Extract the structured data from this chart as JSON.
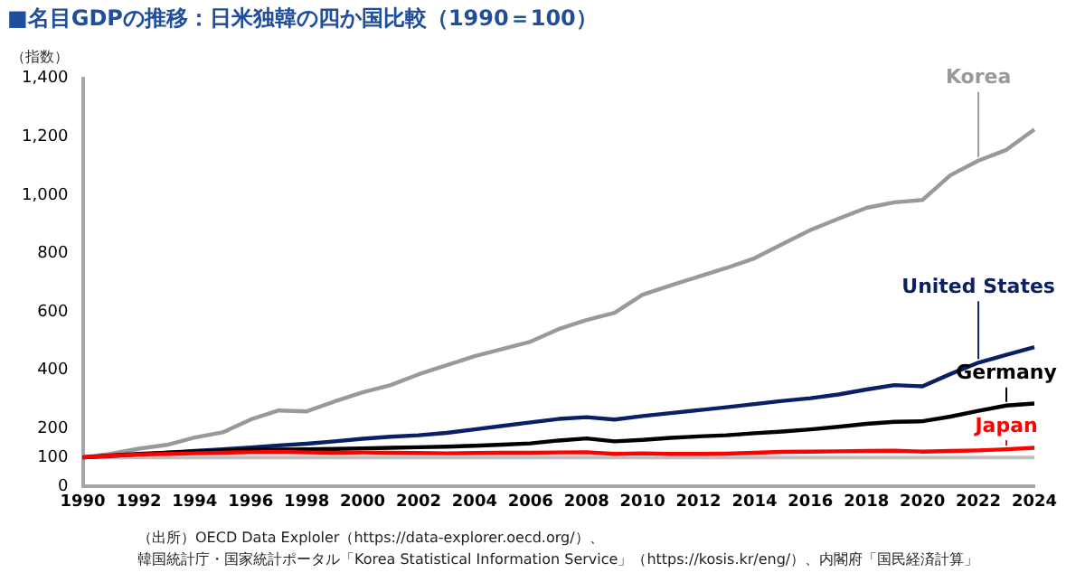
{
  "chart_data": {
    "type": "line",
    "title": "■名目GDPの推移：日米独韓の四か国比較（1990＝100）",
    "ylabel": "（指数）",
    "categories": [
      "1990",
      null,
      "1992",
      null,
      "1994",
      null,
      "1996",
      null,
      "1998",
      null,
      "2000",
      null,
      "2002",
      null,
      "2004",
      null,
      "2006",
      null,
      "2008",
      null,
      "2010",
      null,
      "2012",
      null,
      "2014",
      null,
      "2016",
      null,
      "2018",
      null,
      "2020",
      null,
      "2022",
      null,
      "2024"
    ],
    "series": [
      {
        "name": "Korea",
        "color": "#999999",
        "values": [
          100,
          112,
          130,
          143,
          168,
          186,
          230,
          261,
          258,
          292,
          323,
          348,
          385,
          416,
          447,
          472,
          497,
          540,
          571,
          596,
          658,
          690,
          720,
          750,
          783,
          832,
          880,
          919,
          956,
          975,
          983,
          1068,
          1118,
          1155,
          1225
        ]
      },
      {
        "name": "United States",
        "color": "#0b1f65",
        "values": [
          100,
          105,
          110,
          116,
          122,
          128,
          134,
          141,
          147,
          155,
          164,
          171,
          176,
          184,
          196,
          208,
          220,
          232,
          238,
          230,
          242,
          252,
          262,
          272,
          283,
          294,
          303,
          316,
          333,
          348,
          344,
          386,
          425,
          452,
          478
        ]
      },
      {
        "name": "Germany",
        "color": "#000000",
        "values": [
          100,
          107,
          112,
          116,
          120,
          123,
          126,
          127,
          128,
          129,
          131,
          133,
          135,
          137,
          140,
          144,
          148,
          158,
          165,
          155,
          160,
          167,
          172,
          176,
          183,
          189,
          196,
          205,
          215,
          222,
          224,
          240,
          260,
          278,
          285
        ]
      },
      {
        "name": "Japan",
        "color": "#ff0000",
        "values": [
          100,
          106,
          110,
          112,
          114,
          116,
          118,
          119,
          117,
          116,
          117,
          116,
          115,
          114,
          115,
          116,
          116,
          117,
          118,
          112,
          114,
          112,
          112,
          113,
          116,
          119,
          120,
          121,
          122,
          123,
          120,
          122,
          124,
          128,
          133
        ]
      }
    ],
    "ylim": [
      0,
      1400
    ],
    "yticks": [
      0,
      100,
      200,
      400,
      600,
      800,
      {
        "value": 1000,
        "label": "1,000"
      },
      {
        "value": 1200,
        "label": "1,200"
      },
      {
        "value": 1400,
        "label": "1,400"
      }
    ],
    "ref_lines": [
      {
        "axis": "y",
        "value": 100,
        "color": "#bfbfbf"
      }
    ],
    "grid": false,
    "legend": false,
    "marker": "none",
    "line_style": "solid",
    "annotations": [
      "（出所）OECD Data Exploler（https://data-explorer.oecd.org/）、",
      "韓国統計庁・国家統計ポータル「Korea Statistical Information Service」（https://kosis.kr/eng/）、内閣府「国民経済計算」"
    ]
  }
}
